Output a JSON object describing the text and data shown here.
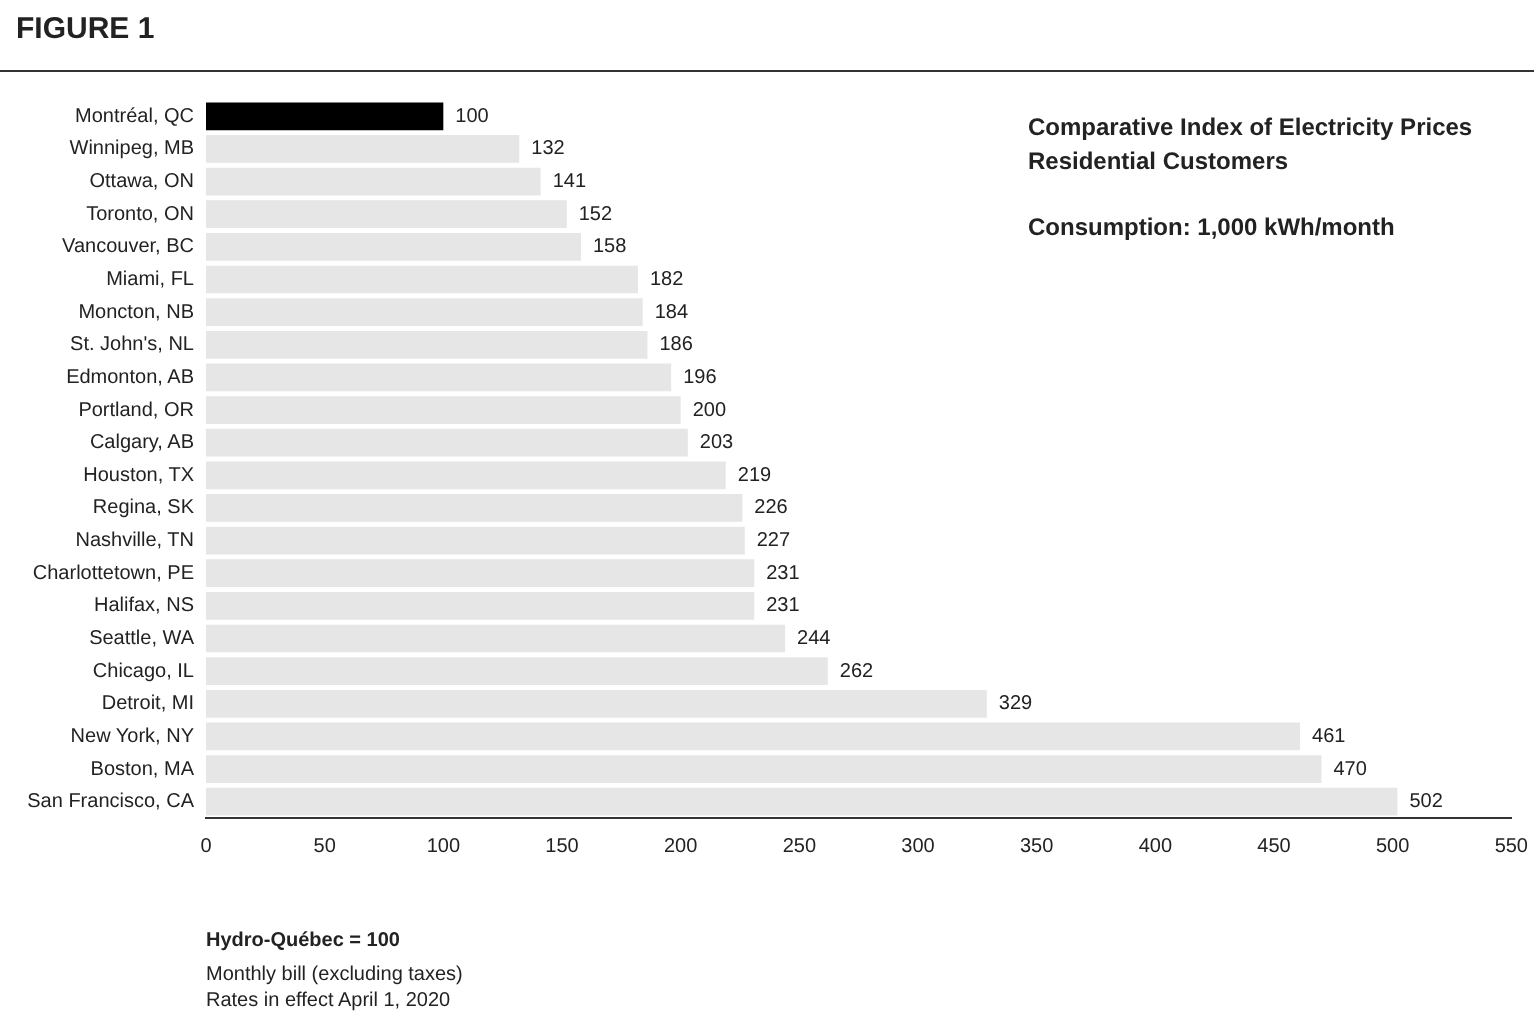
{
  "chart_data": {
    "type": "bar",
    "orientation": "horizontal",
    "title": "Comparative Index of Electricity Prices\nResidential Customers",
    "subtitle": "Consumption: 1,000 kWh/month",
    "annotations": [
      "FIGURE 1",
      "Hydro-Québec = 100",
      "Monthly bill (excluding taxes)",
      "Rates in effect April 1, 2020"
    ],
    "categories": [
      "Montréal, QC",
      "Winnipeg, MB",
      "Ottawa, ON",
      "Toronto, ON",
      "Vancouver, BC",
      "Miami, FL",
      "Moncton, NB",
      "St. John's, NL",
      "Edmonton, AB",
      "Portland, OR",
      "Calgary, AB",
      "Houston, TX",
      "Regina, SK",
      "Nashville, TN",
      "Charlottetown, PE",
      "Halifax, NS",
      "Seattle, WA",
      "Chicago, IL",
      "Detroit, MI",
      "New York, NY",
      "Boston, MA",
      "San Francisco, CA"
    ],
    "values": [
      100,
      132,
      141,
      152,
      158,
      182,
      184,
      186,
      196,
      200,
      203,
      219,
      226,
      227,
      231,
      231,
      244,
      262,
      329,
      461,
      470,
      502
    ],
    "colors": [
      "#000000",
      "#e6e6e7",
      "#e6e6e7",
      "#e6e6e7",
      "#e6e6e7",
      "#e6e6e7",
      "#e6e6e7",
      "#e6e6e7",
      "#e6e6e7",
      "#e6e6e7",
      "#e6e6e7",
      "#e6e6e7",
      "#e6e6e7",
      "#e6e6e7",
      "#e6e6e7",
      "#e6e6e7",
      "#e6e6e7",
      "#e6e6e7",
      "#e6e6e7",
      "#e6e6e7",
      "#e6e6e7",
      "#e6e6e7"
    ],
    "xlim": [
      0,
      550
    ],
    "xticks": [
      0,
      50,
      100,
      150,
      200,
      250,
      300,
      350,
      400,
      450,
      500,
      550
    ],
    "data_labels": true,
    "grid": false,
    "legend": false
  }
}
